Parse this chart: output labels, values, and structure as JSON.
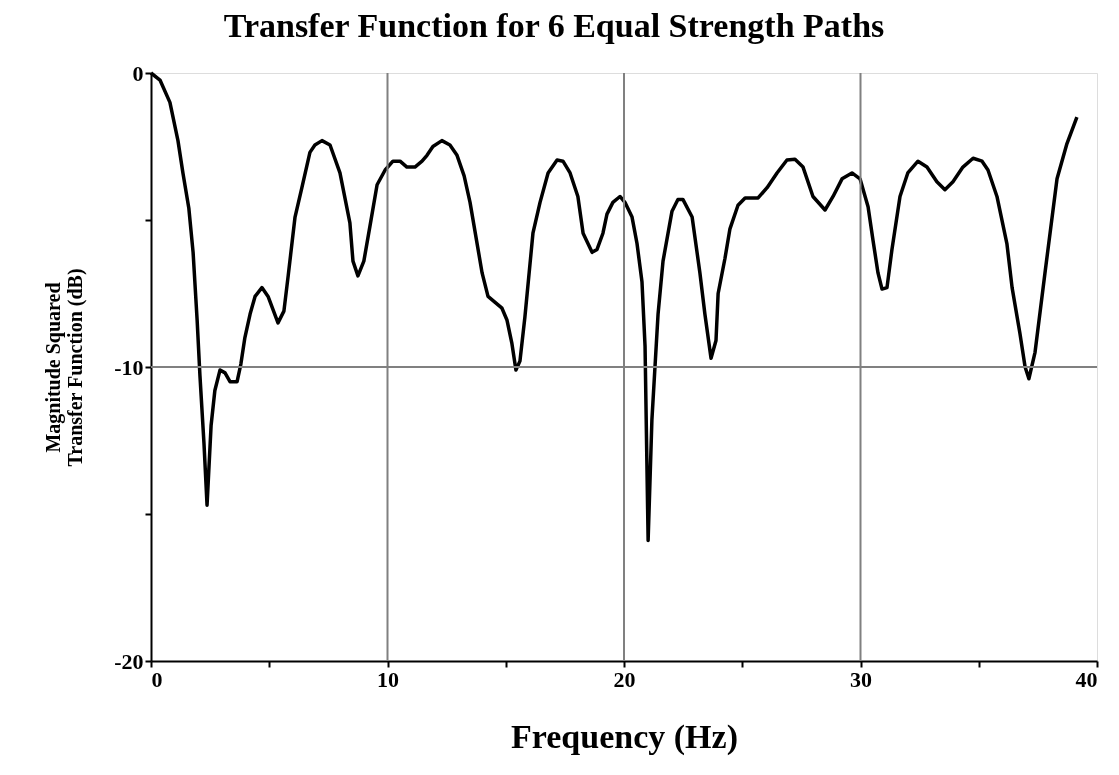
{
  "chart_data": {
    "type": "line",
    "title": "Transfer Function for 6 Equal Strength Paths",
    "xlabel": "Frequency (Hz)",
    "ylabel": "Magnitude Squared\nTransfer Function (dB)",
    "x": [
      0,
      0.38,
      0.8,
      1.14,
      1.35,
      1.6,
      1.78,
      1.95,
      2.07,
      2.24,
      2.37,
      2.54,
      2.7,
      2.92,
      3.13,
      3.34,
      3.64,
      3.8,
      3.97,
      4.19,
      4.4,
      4.69,
      4.95,
      5.37,
      5.62,
      5.8,
      6.09,
      6.38,
      6.72,
      6.93,
      7.23,
      7.57,
      7.99,
      8.41,
      8.54,
      8.75,
      9.0,
      9.26,
      9.56,
      9.9,
      10.23,
      10.53,
      10.82,
      11.16,
      11.46,
      11.67,
      11.92,
      12.3,
      12.64,
      12.94,
      13.24,
      13.49,
      14.0,
      14.25,
      14.55,
      14.84,
      15.05,
      15.26,
      15.43,
      15.6,
      15.81,
      16.15,
      16.45,
      16.79,
      17.17,
      17.42,
      17.72,
      18.05,
      18.27,
      18.65,
      18.86,
      19.11,
      19.28,
      19.53,
      19.83,
      20.04,
      20.34,
      20.55,
      20.76,
      20.89,
      21.02,
      21.18,
      21.44,
      21.65,
      22.03,
      22.28,
      22.49,
      22.88,
      23.21,
      23.42,
      23.68,
      23.89,
      23.98,
      24.27,
      24.48,
      24.82,
      25.12,
      25.67,
      26.05,
      26.47,
      26.89,
      27.23,
      27.57,
      27.99,
      28.5,
      28.84,
      29.22,
      29.64,
      29.98,
      30.32,
      30.53,
      30.74,
      30.91,
      31.12,
      31.33,
      31.67,
      32.0,
      32.43,
      32.81,
      33.23,
      33.57,
      33.91,
      34.33,
      34.76,
      35.14,
      35.39,
      35.77,
      36.19,
      36.41,
      36.74,
      36.96,
      37.12,
      37.38,
      37.8,
      38.31,
      38.73,
      39.15
    ],
    "series": [
      {
        "color": "#000000",
        "values": [
          0,
          -0.24,
          -1.0,
          -2.3,
          -3.4,
          -4.6,
          -6.1,
          -8.4,
          -10.3,
          -12.6,
          -14.7,
          -12.0,
          -10.8,
          -10.1,
          -10.2,
          -10.5,
          -10.5,
          -9.9,
          -9.0,
          -8.2,
          -7.6,
          -7.3,
          -7.6,
          -8.5,
          -8.1,
          -6.9,
          -4.9,
          -3.9,
          -2.7,
          -2.45,
          -2.3,
          -2.45,
          -3.4,
          -5.1,
          -6.4,
          -6.9,
          -6.4,
          -5.2,
          -3.8,
          -3.3,
          -3.0,
          -3.0,
          -3.2,
          -3.2,
          -3.0,
          -2.8,
          -2.5,
          -2.3,
          -2.45,
          -2.8,
          -3.5,
          -4.4,
          -6.8,
          -7.6,
          -7.8,
          -8.0,
          -8.4,
          -9.2,
          -10.1,
          -9.8,
          -8.3,
          -5.45,
          -4.4,
          -3.4,
          -2.96,
          -3.0,
          -3.4,
          -4.2,
          -5.45,
          -6.1,
          -6.0,
          -5.45,
          -4.8,
          -4.4,
          -4.2,
          -4.4,
          -4.9,
          -5.8,
          -7.1,
          -9.3,
          -15.9,
          -11.8,
          -8.2,
          -6.4,
          -4.7,
          -4.3,
          -4.3,
          -4.9,
          -6.8,
          -8.2,
          -9.7,
          -9.1,
          -7.5,
          -6.3,
          -5.3,
          -4.5,
          -4.25,
          -4.25,
          -3.9,
          -3.4,
          -2.96,
          -2.93,
          -3.2,
          -4.2,
          -4.66,
          -4.2,
          -3.6,
          -3.4,
          -3.6,
          -4.55,
          -5.7,
          -6.8,
          -7.35,
          -7.3,
          -6.0,
          -4.2,
          -3.4,
          -3.0,
          -3.2,
          -3.7,
          -3.97,
          -3.7,
          -3.2,
          -2.9,
          -3.0,
          -3.3,
          -4.2,
          -5.8,
          -7.3,
          -8.85,
          -10.0,
          -10.4,
          -9.5,
          -6.8,
          -3.6,
          -2.4,
          -1.5
        ]
      }
    ],
    "xlim": [
      0,
      40
    ],
    "xticks": [
      0,
      {
        "value": 5,
        "label": null
      },
      10,
      {
        "value": 15,
        "label": null
      },
      20,
      {
        "value": 25,
        "label": null
      },
      30,
      {
        "value": 35,
        "label": null
      },
      40
    ],
    "ylim": [
      -20,
      0
    ],
    "yticks": [
      -20,
      {
        "value": -15,
        "label": null
      },
      -10,
      {
        "value": -5,
        "label": null
      },
      0
    ],
    "grid": true,
    "marker": "none",
    "line_style": "solid"
  }
}
